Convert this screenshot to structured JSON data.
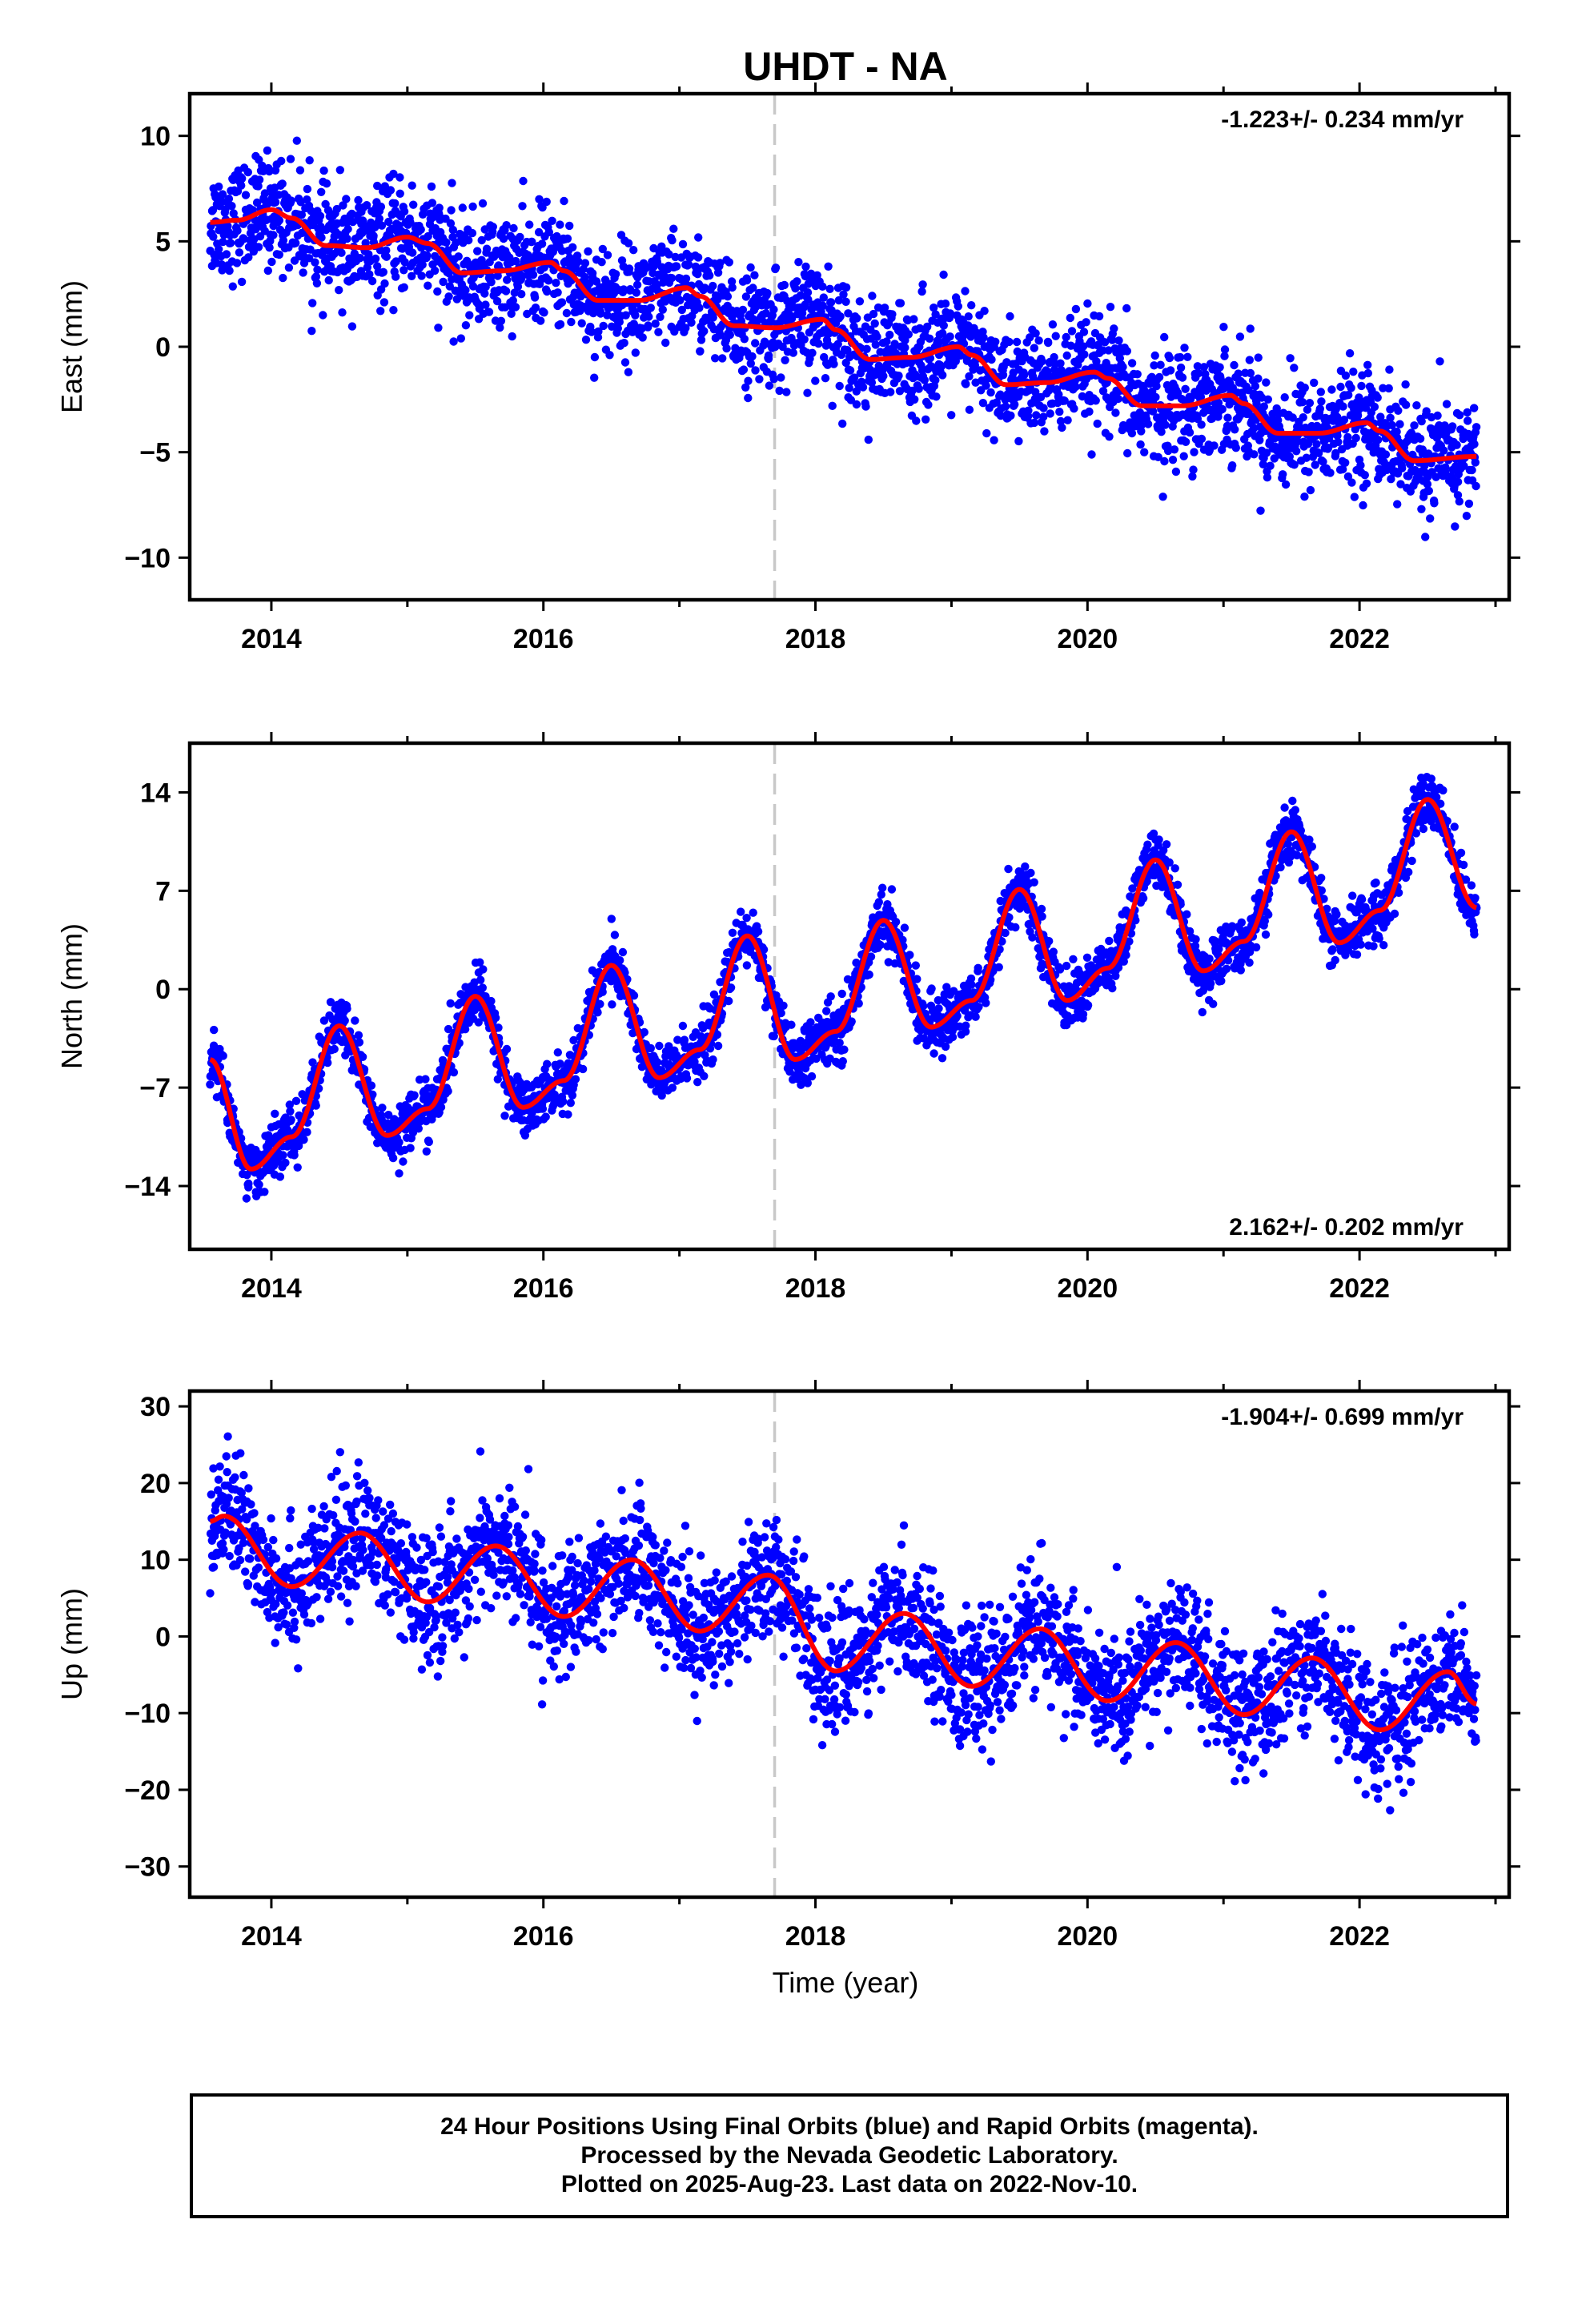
{
  "title": "UHDT - NA",
  "xlabel": "Time (year)",
  "footer": [
    "24 Hour Positions Using Final Orbits (blue) and Rapid Orbits (magenta).",
    "Processed by the Nevada Geodetic Laboratory.",
    "Plotted on 2025-Aug-23. Last data on 2022-Nov-10."
  ],
  "colors": {
    "final_orbits": "#0000ff",
    "fit": "#ff0000",
    "marker_line": "#c8c8c8"
  },
  "chart_data": [
    {
      "type": "scatter",
      "ylabel": "East (mm)",
      "rate_label": "-1.223+/- 0.234 mm/yr",
      "xlim": [
        2013.4,
        2023.1
      ],
      "ylim": [
        -12,
        12
      ],
      "xticks": [
        2014,
        2016,
        2018,
        2020,
        2022
      ],
      "xtick_labels": [
        "2014",
        "2016",
        "2018",
        "2020",
        "2022"
      ],
      "yticks": [
        -10,
        -5,
        0,
        5,
        10
      ],
      "ytick_labels": [
        "−10",
        "−5",
        "0",
        "5",
        "10"
      ],
      "equipment_change": 2017.7,
      "data_range": [
        2013.55,
        2022.86
      ],
      "fit": [
        [
          2013.55,
          5.9
        ],
        [
          2013.75,
          6.0
        ],
        [
          2014.0,
          6.5
        ],
        [
          2014.15,
          6.1
        ],
        [
          2014.4,
          4.8
        ],
        [
          2014.7,
          4.7
        ],
        [
          2015.0,
          5.2
        ],
        [
          2015.15,
          4.9
        ],
        [
          2015.4,
          3.5
        ],
        [
          2015.7,
          3.6
        ],
        [
          2016.05,
          4.0
        ],
        [
          2016.15,
          3.6
        ],
        [
          2016.4,
          2.2
        ],
        [
          2016.7,
          2.2
        ],
        [
          2017.05,
          2.8
        ],
        [
          2017.15,
          2.4
        ],
        [
          2017.4,
          1.0
        ],
        [
          2017.7,
          0.9
        ],
        [
          2018.05,
          1.3
        ],
        [
          2018.15,
          0.8
        ],
        [
          2018.4,
          -0.6
        ],
        [
          2018.7,
          -0.5
        ],
        [
          2019.05,
          0.0
        ],
        [
          2019.15,
          -0.4
        ],
        [
          2019.4,
          -1.8
        ],
        [
          2019.7,
          -1.7
        ],
        [
          2020.05,
          -1.2
        ],
        [
          2020.15,
          -1.5
        ],
        [
          2020.4,
          -2.8
        ],
        [
          2020.7,
          -2.8
        ],
        [
          2021.05,
          -2.3
        ],
        [
          2021.15,
          -2.7
        ],
        [
          2021.4,
          -4.1
        ],
        [
          2021.7,
          -4.1
        ],
        [
          2022.05,
          -3.6
        ],
        [
          2022.15,
          -4.0
        ],
        [
          2022.4,
          -5.4
        ],
        [
          2022.86,
          -5.2
        ]
      ],
      "scatter_sigma": 1.3,
      "season_amp": 0.0
    },
    {
      "type": "scatter",
      "ylabel": "North (mm)",
      "rate_label": "2.162+/- 0.202 mm/yr",
      "xlim": [
        2013.4,
        2023.1
      ],
      "ylim": [
        -18.5,
        17.5
      ],
      "xticks": [
        2014,
        2016,
        2018,
        2020,
        2022
      ],
      "xtick_labels": [
        "2014",
        "2016",
        "2018",
        "2020",
        "2022"
      ],
      "yticks": [
        -14,
        -7,
        0,
        7,
        14
      ],
      "ytick_labels": [
        "−14",
        "−7",
        "0",
        "7",
        "14"
      ],
      "equipment_change": 2017.7,
      "data_range": [
        2013.55,
        2022.86
      ],
      "fit": [
        [
          2013.55,
          -5.0
        ],
        [
          2013.85,
          -12.8
        ],
        [
          2014.15,
          -10.5
        ],
        [
          2014.5,
          -2.6
        ],
        [
          2014.85,
          -10.4
        ],
        [
          2015.15,
          -8.5
        ],
        [
          2015.5,
          -0.5
        ],
        [
          2015.85,
          -8.4
        ],
        [
          2016.15,
          -6.5
        ],
        [
          2016.5,
          1.7
        ],
        [
          2016.85,
          -6.3
        ],
        [
          2017.15,
          -4.3
        ],
        [
          2017.5,
          3.8
        ],
        [
          2017.85,
          -5.0
        ],
        [
          2018.15,
          -3.0
        ],
        [
          2018.5,
          4.9
        ],
        [
          2018.85,
          -2.7
        ],
        [
          2019.15,
          -0.8
        ],
        [
          2019.5,
          7.1
        ],
        [
          2019.85,
          -0.8
        ],
        [
          2020.15,
          1.5
        ],
        [
          2020.5,
          9.2
        ],
        [
          2020.85,
          1.3
        ],
        [
          2021.15,
          3.4
        ],
        [
          2021.5,
          11.2
        ],
        [
          2021.85,
          3.3
        ],
        [
          2022.15,
          5.6
        ],
        [
          2022.5,
          13.5
        ],
        [
          2022.86,
          5.8
        ]
      ],
      "scatter_sigma": 1.0,
      "season_amp": 0.0
    },
    {
      "type": "scatter",
      "ylabel": "Up (mm)",
      "rate_label": "-1.904+/- 0.699 mm/yr",
      "xlim": [
        2013.4,
        2023.1
      ],
      "ylim": [
        -34,
        32
      ],
      "xticks": [
        2014,
        2016,
        2018,
        2020,
        2022
      ],
      "xtick_labels": [
        "2014",
        "2016",
        "2018",
        "2020",
        "2022"
      ],
      "yticks": [
        -30,
        -20,
        -10,
        0,
        10,
        20,
        30
      ],
      "ytick_labels": [
        "−30",
        "−20",
        "−10",
        "0",
        "10",
        "20",
        "30"
      ],
      "equipment_change": 2017.7,
      "data_range": [
        2013.55,
        2022.86
      ],
      "fit": [
        [
          2013.55,
          15.0
        ],
        [
          2013.65,
          15.7
        ],
        [
          2014.15,
          6.5
        ],
        [
          2014.65,
          13.5
        ],
        [
          2015.15,
          4.5
        ],
        [
          2015.65,
          11.8
        ],
        [
          2016.15,
          2.6
        ],
        [
          2016.65,
          10.0
        ],
        [
          2017.15,
          0.7
        ],
        [
          2017.65,
          8.0
        ],
        [
          2018.15,
          -4.5
        ],
        [
          2018.65,
          3.0
        ],
        [
          2019.15,
          -6.5
        ],
        [
          2019.65,
          1.0
        ],
        [
          2020.15,
          -8.4
        ],
        [
          2020.65,
          -0.8
        ],
        [
          2021.15,
          -10.2
        ],
        [
          2021.65,
          -2.8
        ],
        [
          2022.15,
          -12.2
        ],
        [
          2022.65,
          -4.6
        ],
        [
          2022.86,
          -8.8
        ]
      ],
      "scatter_sigma": 4.0,
      "season_amp": 0.0
    }
  ]
}
